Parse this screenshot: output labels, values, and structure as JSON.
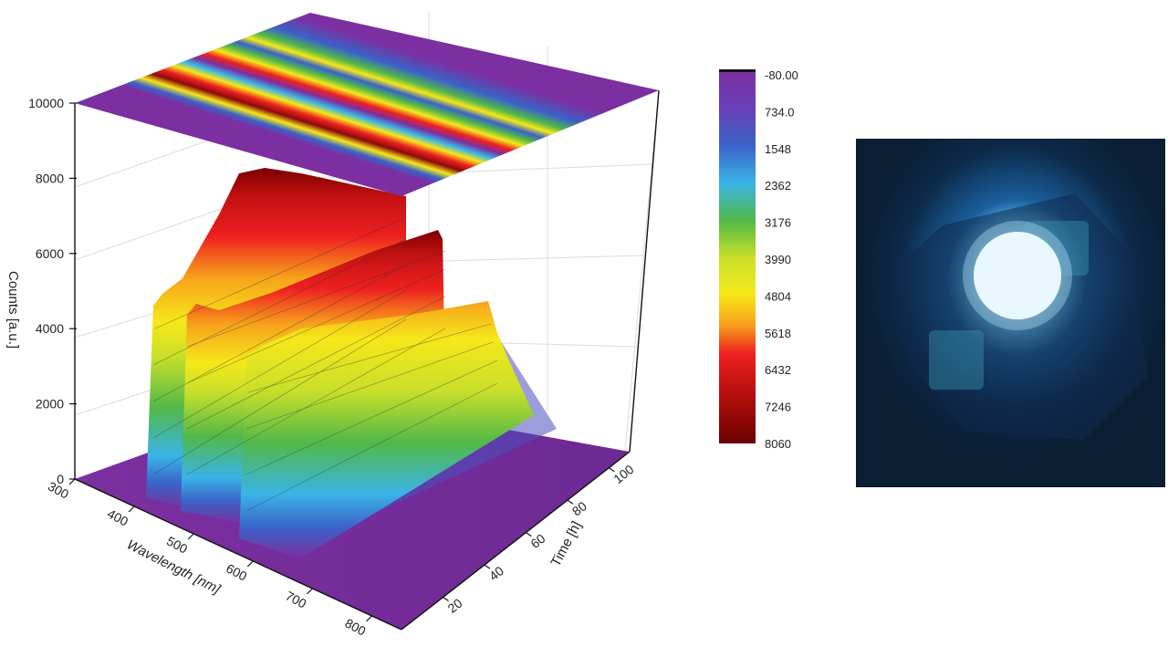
{
  "chart_data": {
    "type": "surface3d",
    "z_axis": {
      "label": "Counts [a.u.]",
      "ticks": [
        "0",
        "2000",
        "4000",
        "6000",
        "8000",
        "10000"
      ],
      "range": [
        0,
        10000
      ]
    },
    "x_axis": {
      "label": "Wavelength [nm]",
      "ticks": [
        "300",
        "400",
        "500",
        "600",
        "700",
        "800"
      ],
      "range": [
        300,
        850
      ]
    },
    "y_axis": {
      "label": "Time [h]",
      "ticks": [
        "20",
        "40",
        "60",
        "80",
        "100"
      ],
      "range": [
        0,
        110
      ]
    },
    "colorbar": {
      "ticks": [
        "-80.00",
        "734.0",
        "1548",
        "2362",
        "3176",
        "3990",
        "4804",
        "5618",
        "6432",
        "7246",
        "8060"
      ],
      "range": [
        -80,
        8060
      ]
    },
    "projection_on_top": true,
    "grid": true,
    "series": [
      {
        "peak_wavelength_nm": 450,
        "counts_at_t0": 4500,
        "counts_at_t110": 8000
      },
      {
        "peak_wavelength_nm": 530,
        "counts_at_t0": 4200,
        "counts_at_t110": 6400
      },
      {
        "peak_wavelength_nm": 640,
        "counts_at_t0": 3800,
        "counts_at_t110": 4600
      }
    ]
  },
  "colors": {
    "purple": "#7a2f9e",
    "dark_red": "#7a0000",
    "red": "#ee2020",
    "yellow": "#f6e81a",
    "green": "#52b848",
    "cyan": "#3ab4e8",
    "blue": "#3a62c8"
  },
  "photo": {
    "icon": "led-photo"
  }
}
